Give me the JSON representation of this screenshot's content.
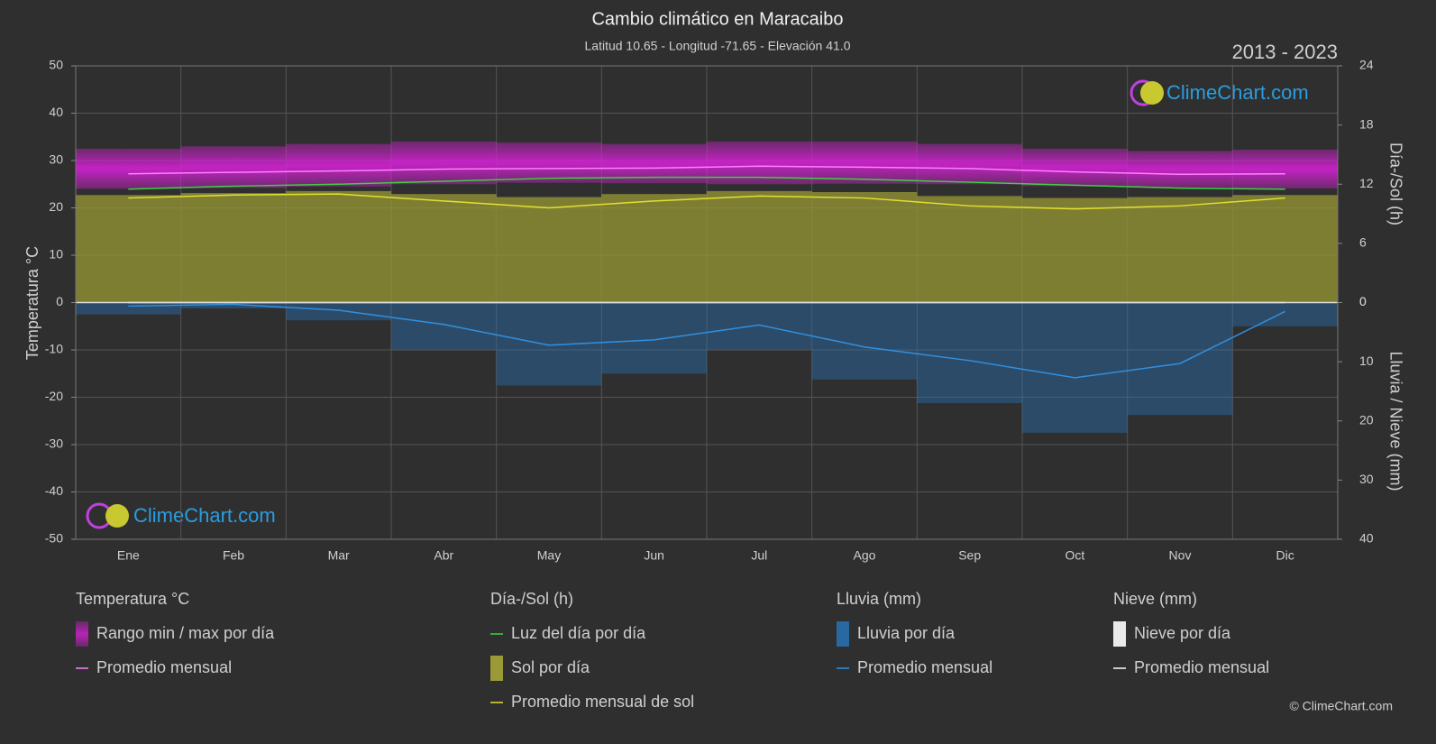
{
  "chart_data": {
    "type": "climate",
    "title": "Cambio climático en Maracaibo",
    "subtitle": "Latitud 10.65 - Longitud -71.65 - Elevación 41.0",
    "period": "2013 - 2023",
    "ylabel": "Temperatura °C",
    "y2label": "Día-/Sol (h)",
    "y3label": "Lluvia / Nieve (mm)",
    "categories": [
      "Ene",
      "Feb",
      "Mar",
      "Abr",
      "May",
      "Jun",
      "Jul",
      "Ago",
      "Sep",
      "Oct",
      "Nov",
      "Dic"
    ],
    "ylim": [
      -50,
      50
    ],
    "yticks": [
      -50,
      -40,
      -30,
      -20,
      -10,
      0,
      10,
      20,
      30,
      40,
      50
    ],
    "y2lim": [
      -24,
      24
    ],
    "y2ticks": [
      0,
      6,
      12,
      18,
      24
    ],
    "y3lim": [
      40,
      -40
    ],
    "y3ticks": [
      0,
      10,
      20,
      30,
      40
    ],
    "grid": true,
    "groups": [
      {
        "title": "Temperatura °C",
        "series": [
          {
            "name": "Rango min / max por día",
            "kind": "range",
            "axis": "y",
            "color": "#e020e0",
            "low": [
              24.0,
              24.2,
              24.5,
              25.0,
              25.3,
              25.2,
              25.0,
              25.1,
              25.0,
              24.6,
              24.3,
              24.1
            ],
            "high": [
              32.5,
              33.0,
              33.5,
              34.0,
              33.8,
              33.5,
              34.0,
              34.0,
              33.5,
              32.5,
              32.0,
              32.3
            ]
          },
          {
            "name": "Promedio mensual",
            "kind": "line",
            "axis": "y",
            "color": "#ff80ff",
            "values": [
              27.2,
              27.5,
              27.8,
              28.2,
              28.3,
              28.4,
              28.8,
              28.6,
              28.3,
              27.6,
              27.1,
              27.2
            ]
          }
        ]
      },
      {
        "title": "Día-/Sol (h)",
        "series": [
          {
            "name": "Luz del día por día",
            "kind": "line",
            "axis": "y2",
            "color": "#40d040",
            "values": [
              11.5,
              11.8,
              12.0,
              12.3,
              12.6,
              12.7,
              12.7,
              12.5,
              12.2,
              11.9,
              11.6,
              11.5
            ]
          },
          {
            "name": "Sol por día",
            "kind": "area",
            "axis": "y2",
            "color": "#9a9a36",
            "values": [
              10.9,
              11.1,
              11.3,
              11.0,
              10.7,
              11.0,
              11.3,
              11.2,
              10.8,
              10.6,
              10.7,
              10.9
            ]
          },
          {
            "name": "Promedio mensual de sol",
            "kind": "line",
            "axis": "y2",
            "color": "#e0e030",
            "values": [
              10.6,
              10.9,
              11.0,
              10.3,
              9.6,
              10.3,
              10.8,
              10.6,
              9.8,
              9.5,
              9.8,
              10.6
            ]
          }
        ]
      },
      {
        "title": "Lluvia (mm)",
        "series": [
          {
            "name": "Lluvia por día",
            "kind": "bars",
            "axis": "y3",
            "color": "#2a6fb0",
            "values": [
              2.0,
              1.0,
              3.0,
              8.0,
              14.0,
              12.0,
              8.0,
              13.0,
              17.0,
              22.0,
              19.0,
              4.0
            ]
          },
          {
            "name": "Promedio mensual",
            "kind": "line",
            "axis": "y3",
            "color": "#3090e0",
            "values": [
              0.6,
              0.3,
              1.3,
              3.7,
              7.2,
              6.3,
              3.8,
              7.5,
              9.8,
              12.7,
              10.3,
              1.5
            ]
          }
        ]
      },
      {
        "title": "Nieve (mm)",
        "series": [
          {
            "name": "Nieve por día",
            "kind": "bars",
            "axis": "y3",
            "color": "#ffffff",
            "values": [
              0,
              0,
              0,
              0,
              0,
              0,
              0,
              0,
              0,
              0,
              0,
              0
            ]
          },
          {
            "name": "Promedio mensual",
            "kind": "line",
            "axis": "y3",
            "color": "#ffffff",
            "values": [
              0,
              0,
              0,
              0,
              0,
              0,
              0,
              0,
              0,
              0,
              0,
              0
            ]
          }
        ]
      }
    ]
  },
  "watermark": "ClimeChart.com",
  "copyright": "© ClimeChart.com"
}
